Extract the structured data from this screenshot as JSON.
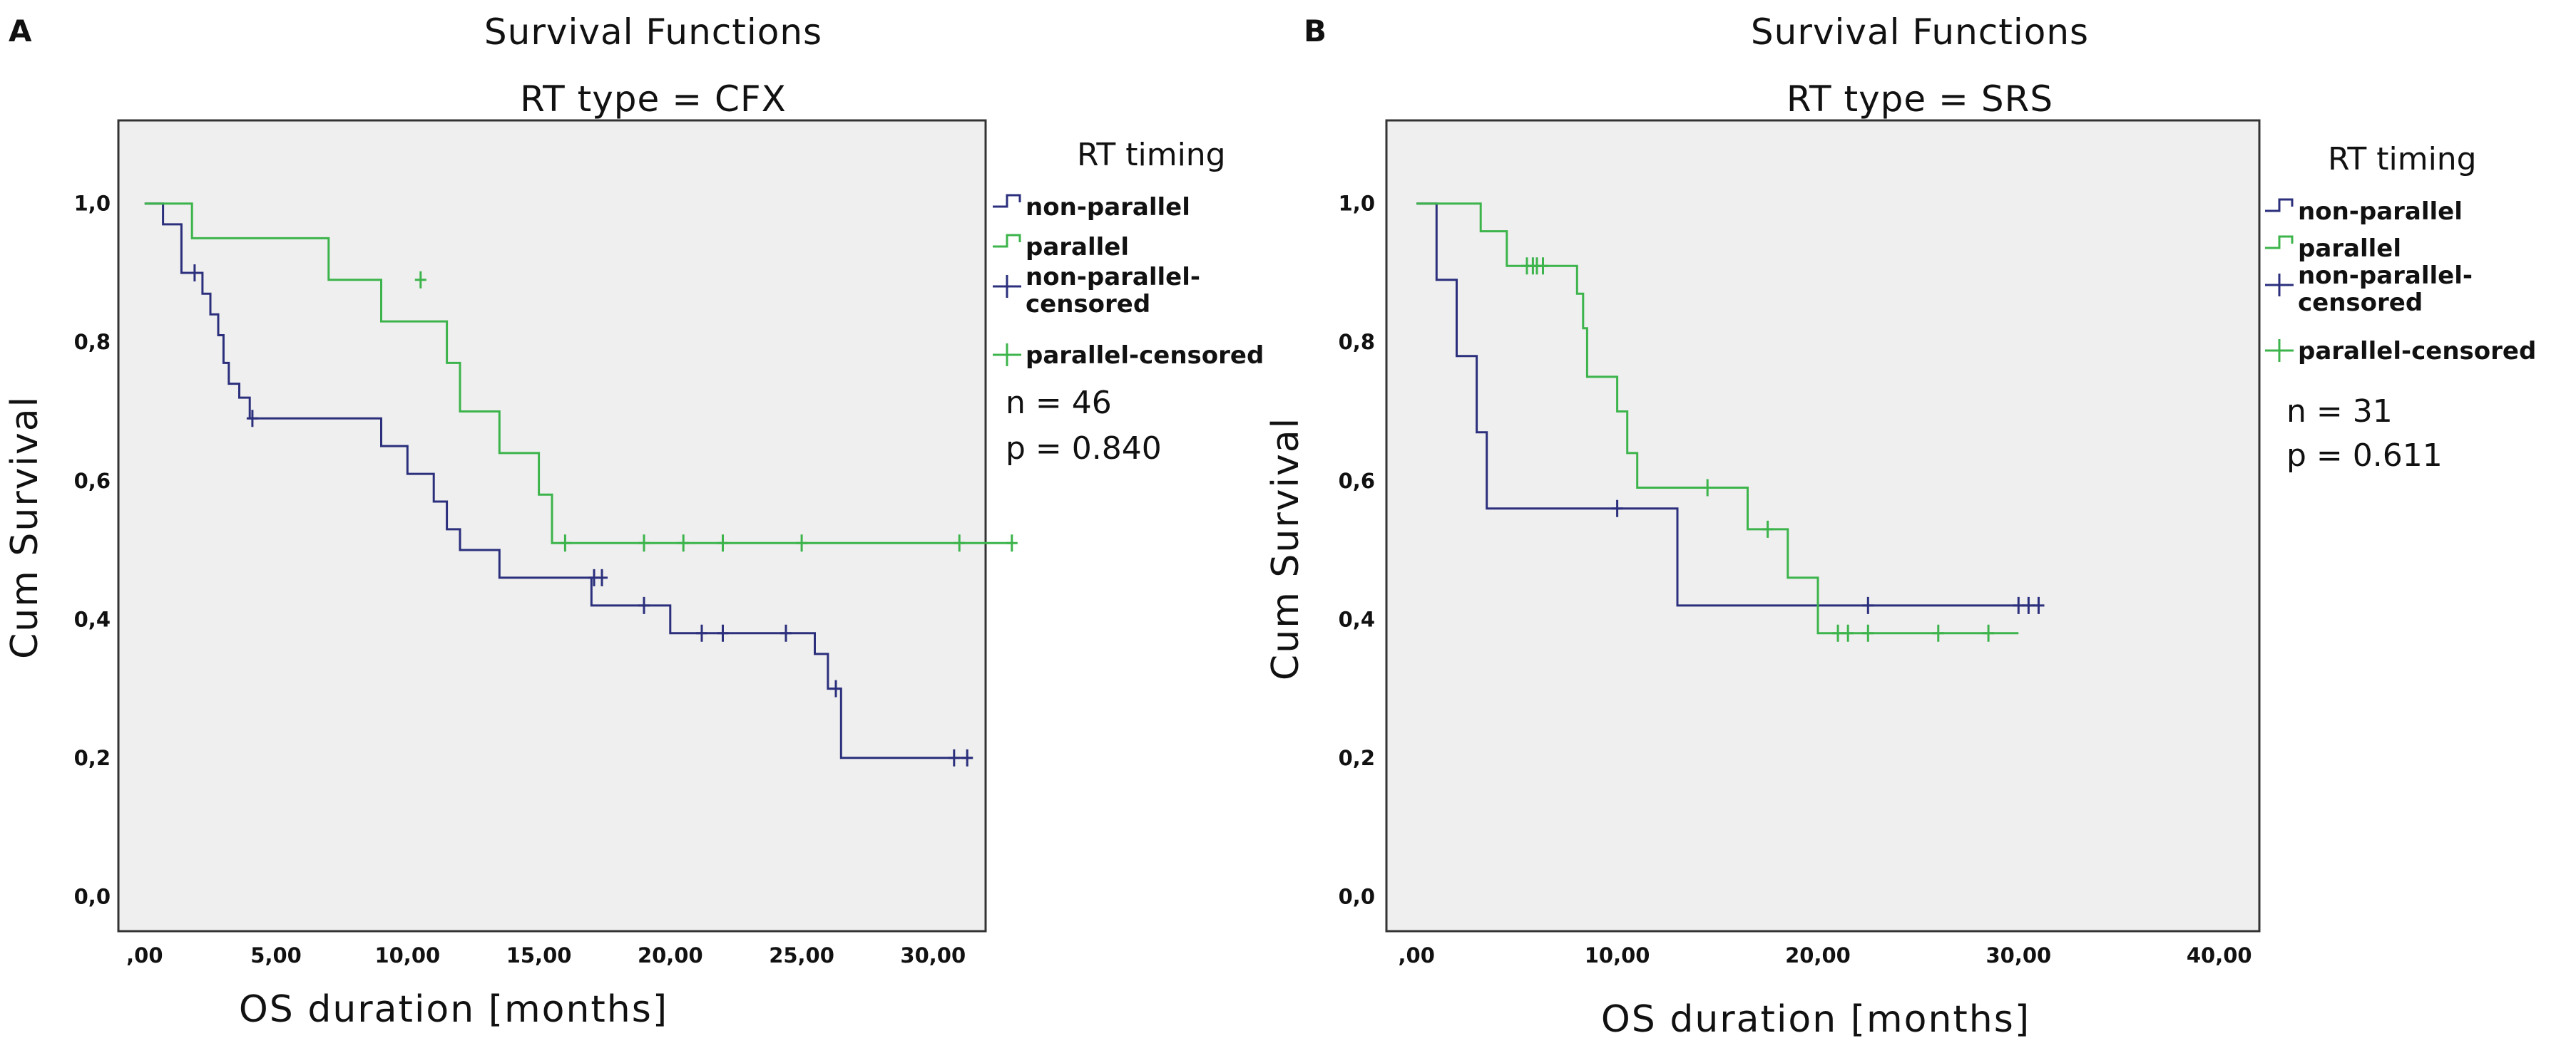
{
  "chart_data": [
    {
      "type": "line",
      "panel": "A",
      "title": "Survival Functions",
      "subtitle": "RT type = CFX",
      "xlabel": "OS duration [months]",
      "ylabel": "Cum Survival",
      "xlim": [
        -1,
        32
      ],
      "ylim": [
        -0.05,
        1.12
      ],
      "xticks": [
        0,
        5,
        10,
        15,
        20,
        25,
        30
      ],
      "xtick_labels": [
        ",00",
        "5,00",
        "10,00",
        "15,00",
        "20,00",
        "25,00",
        "30,00"
      ],
      "yticks": [
        0,
        0.2,
        0.4,
        0.6,
        0.8,
        1.0
      ],
      "ytick_labels": [
        "0,0",
        "0,2",
        "0,4",
        "0,6",
        "0,8",
        "1,0"
      ],
      "legend": {
        "title": "RT timing",
        "entries": [
          {
            "label": "non-parallel",
            "kind": "step",
            "color": "#2b2f7c"
          },
          {
            "label": "parallel",
            "kind": "step",
            "color": "#3cb44b"
          },
          {
            "label": "non-parallel-censored",
            "kind": "censor",
            "color": "#2b2f7c"
          },
          {
            "label": "parallel-censored",
            "kind": "censor",
            "color": "#3cb44b"
          }
        ]
      },
      "stats": [
        "n = 46",
        "p = 0.840"
      ],
      "series": [
        {
          "name": "non-parallel",
          "color": "#2b2f7c",
          "steps": [
            [
              0,
              1.0
            ],
            [
              0.7,
              0.97
            ],
            [
              1.4,
              0.9
            ],
            [
              2.2,
              0.87
            ],
            [
              2.5,
              0.84
            ],
            [
              2.8,
              0.81
            ],
            [
              3.0,
              0.77
            ],
            [
              3.2,
              0.74
            ],
            [
              3.6,
              0.72
            ],
            [
              4.0,
              0.69
            ],
            [
              9.0,
              0.65
            ],
            [
              10.0,
              0.61
            ],
            [
              11.0,
              0.57
            ],
            [
              11.5,
              0.53
            ],
            [
              12.0,
              0.5
            ],
            [
              13.5,
              0.46
            ],
            [
              17.0,
              0.42
            ],
            [
              20.0,
              0.38
            ],
            [
              25.5,
              0.35
            ],
            [
              26.0,
              0.3
            ],
            [
              26.5,
              0.2
            ],
            [
              31.5,
              0.2
            ]
          ],
          "censored": [
            [
              1.9,
              0.9
            ],
            [
              4.1,
              0.69
            ],
            [
              17.1,
              0.46
            ],
            [
              17.4,
              0.46
            ],
            [
              19.0,
              0.42
            ],
            [
              21.2,
              0.38
            ],
            [
              22.0,
              0.38
            ],
            [
              24.4,
              0.38
            ],
            [
              26.3,
              0.3
            ],
            [
              30.8,
              0.2
            ],
            [
              31.3,
              0.2
            ]
          ]
        },
        {
          "name": "parallel",
          "color": "#3cb44b",
          "steps": [
            [
              0,
              1.0
            ],
            [
              1.5,
              1.0
            ],
            [
              1.8,
              0.95
            ],
            [
              7.0,
              0.89
            ],
            [
              9.0,
              0.83
            ],
            [
              11.5,
              0.77
            ],
            [
              12.0,
              0.7
            ],
            [
              13.5,
              0.64
            ],
            [
              15.0,
              0.58
            ],
            [
              15.5,
              0.51
            ],
            [
              33.0,
              0.51
            ]
          ],
          "censored": [
            [
              10.5,
              0.89
            ],
            [
              16.0,
              0.51
            ],
            [
              19.0,
              0.51
            ],
            [
              20.5,
              0.51
            ],
            [
              22.0,
              0.51
            ],
            [
              25.0,
              0.51
            ],
            [
              31.0,
              0.51
            ],
            [
              33.0,
              0.51
            ]
          ]
        }
      ]
    },
    {
      "type": "line",
      "panel": "B",
      "title": "Survival Functions",
      "subtitle": "RT type = SRS",
      "xlabel": "OS duration [months]",
      "ylabel": "Cum Survival",
      "xlim": [
        -1.5,
        42
      ],
      "ylim": [
        -0.05,
        1.12
      ],
      "xticks": [
        0,
        10,
        20,
        30,
        40
      ],
      "xtick_labels": [
        ",00",
        "10,00",
        "20,00",
        "30,00",
        "40,00"
      ],
      "yticks": [
        0,
        0.2,
        0.4,
        0.6,
        0.8,
        1.0
      ],
      "ytick_labels": [
        "0,0",
        "0,2",
        "0,4",
        "0,6",
        "0,8",
        "1,0"
      ],
      "legend": {
        "title": "RT timing",
        "entries": [
          {
            "label": "non-parallel",
            "kind": "step",
            "color": "#2b2f7c"
          },
          {
            "label": "parallel",
            "kind": "step",
            "color": "#3cb44b"
          },
          {
            "label": "non-parallel-censored",
            "kind": "censor",
            "color": "#2b2f7c"
          },
          {
            "label": "parallel-censored",
            "kind": "censor",
            "color": "#3cb44b"
          }
        ]
      },
      "stats": [
        "n = 31",
        "p = 0.611"
      ],
      "series": [
        {
          "name": "non-parallel",
          "color": "#2b2f7c",
          "steps": [
            [
              0,
              1.0
            ],
            [
              0.8,
              1.0
            ],
            [
              1.0,
              0.89
            ],
            [
              2.0,
              0.78
            ],
            [
              3.0,
              0.67
            ],
            [
              3.5,
              0.56
            ],
            [
              13.0,
              0.42
            ],
            [
              31.0,
              0.42
            ]
          ],
          "censored": [
            [
              10.0,
              0.56
            ],
            [
              22.5,
              0.42
            ],
            [
              30.0,
              0.42
            ],
            [
              30.5,
              0.42
            ],
            [
              31.0,
              0.42
            ]
          ]
        },
        {
          "name": "parallel",
          "color": "#3cb44b",
          "steps": [
            [
              0,
              1.0
            ],
            [
              3.0,
              1.0
            ],
            [
              3.2,
              0.96
            ],
            [
              4.5,
              0.91
            ],
            [
              8.0,
              0.87
            ],
            [
              8.3,
              0.82
            ],
            [
              8.5,
              0.75
            ],
            [
              10.0,
              0.7
            ],
            [
              10.5,
              0.64
            ],
            [
              11.0,
              0.59
            ],
            [
              16.5,
              0.53
            ],
            [
              18.5,
              0.46
            ],
            [
              20.0,
              0.38
            ],
            [
              30.0,
              0.38
            ]
          ],
          "censored": [
            [
              5.5,
              0.91
            ],
            [
              5.8,
              0.91
            ],
            [
              6.0,
              0.91
            ],
            [
              6.3,
              0.91
            ],
            [
              14.5,
              0.59
            ],
            [
              17.5,
              0.53
            ],
            [
              21.0,
              0.38
            ],
            [
              21.5,
              0.38
            ],
            [
              22.5,
              0.38
            ],
            [
              26.0,
              0.38
            ],
            [
              28.5,
              0.38
            ]
          ]
        }
      ]
    }
  ]
}
